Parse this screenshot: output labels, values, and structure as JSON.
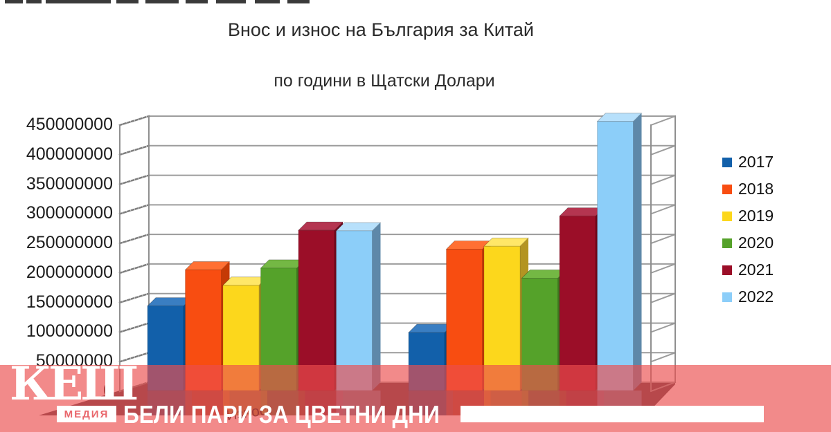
{
  "title": "Внос и износ на България за Китай",
  "subtitle": "по години в Щатски Долари",
  "chart_data": {
    "type": "bar",
    "projection": "3d",
    "categories": [
      "Износ",
      ""
    ],
    "series": [
      {
        "name": "2017",
        "color": "#1260AA",
        "side": "#0C4A86",
        "top": "#3A7EC2",
        "values": [
          143000000,
          98000000
        ]
      },
      {
        "name": "2018",
        "color": "#F84D11",
        "side": "#C53A05",
        "top": "#FF7033",
        "values": [
          204000000,
          239000000
        ]
      },
      {
        "name": "2019",
        "color": "#FCD71C",
        "side": "#B39422",
        "top": "#FFE768",
        "values": [
          178000000,
          244000000
        ]
      },
      {
        "name": "2020",
        "color": "#55A22A",
        "side": "#3E761F",
        "top": "#74B844",
        "values": [
          207000000,
          190000000
        ]
      },
      {
        "name": "2021",
        "color": "#9B0E28",
        "side": "#6E081C",
        "top": "#B43550",
        "values": [
          271000000,
          295000000
        ]
      },
      {
        "name": "2022",
        "color": "#8CCEF9",
        "side": "#5E88A9",
        "top": "#B7E0FB",
        "values": [
          270000000,
          455000000
        ]
      }
    ],
    "ylim": [
      0,
      450000000
    ],
    "ytick_step": 50000000,
    "yticks": [
      "450000000",
      "400000000",
      "350000000",
      "300000000",
      "250000000",
      "200000000",
      "150000000",
      "100000000",
      "50000000",
      "0"
    ],
    "grid": true,
    "legend_position": "right"
  },
  "watermark": {
    "brand_top": "КЕШ",
    "brand_bottom": "МЕДИЯ",
    "slogan": "БЕЛИ ПАРИ ЗА ЦВЕТНИ ДНИ",
    "banner_color": "#EC4E4E"
  }
}
